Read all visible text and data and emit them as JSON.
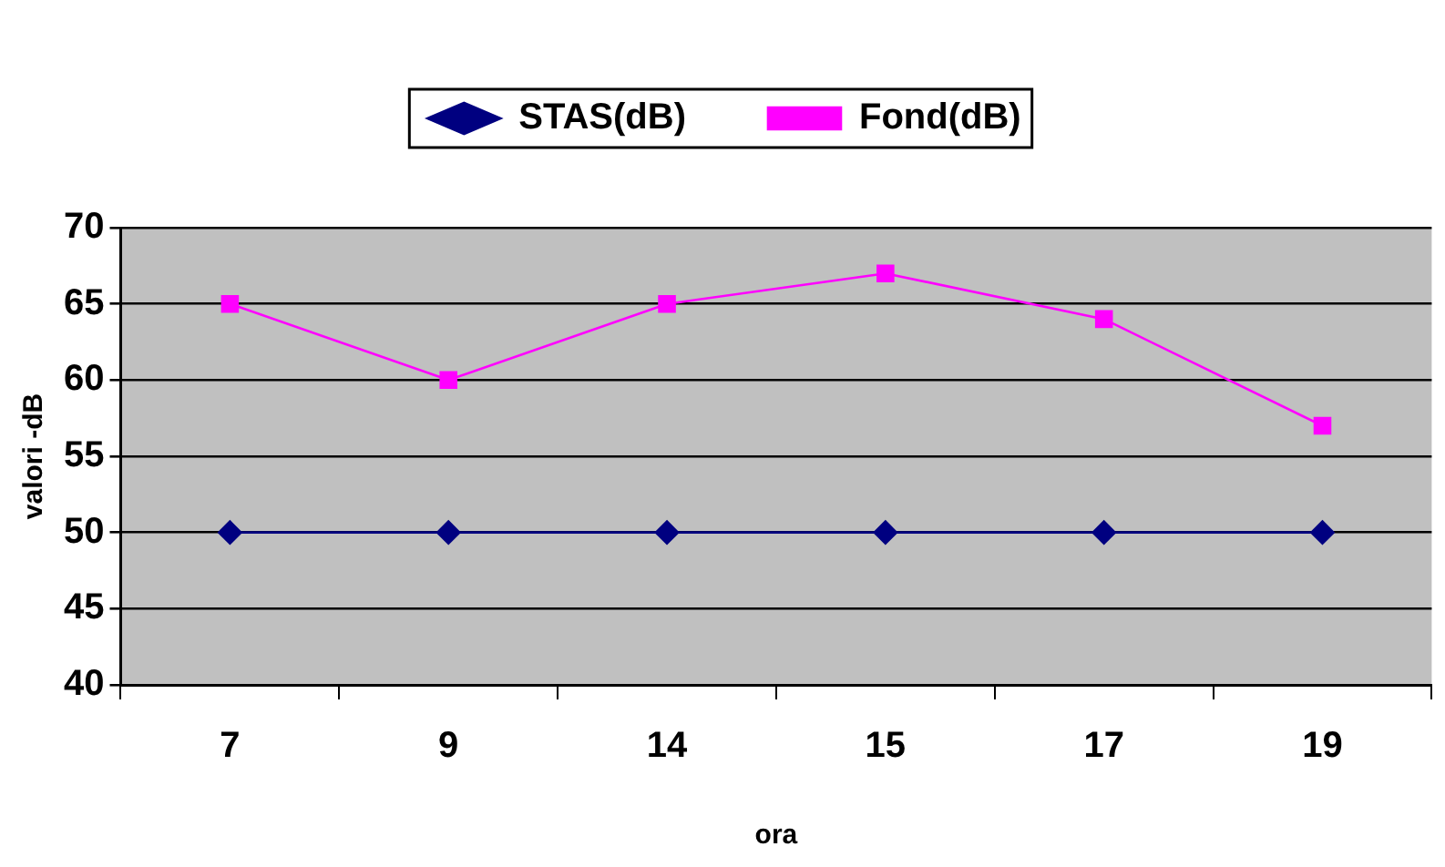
{
  "chart_data": {
    "type": "line",
    "xlabel": "ora",
    "ylabel": "valori -dB",
    "categories": [
      "7",
      "9",
      "14",
      "15",
      "17",
      "19"
    ],
    "series": [
      {
        "name": "STAS(dB)",
        "color": "#000080",
        "marker": "diamond",
        "values": [
          50,
          50,
          50,
          50,
          50,
          50
        ]
      },
      {
        "name": "Fond(dB)",
        "color": "#ff00ff",
        "marker": "square",
        "values": [
          65,
          60,
          65,
          67,
          64,
          57
        ]
      }
    ],
    "ylim": [
      40,
      70
    ],
    "yticks": [
      40,
      45,
      50,
      55,
      60,
      65,
      70
    ],
    "grid": "y",
    "legend": "top",
    "line_style": "solid"
  }
}
